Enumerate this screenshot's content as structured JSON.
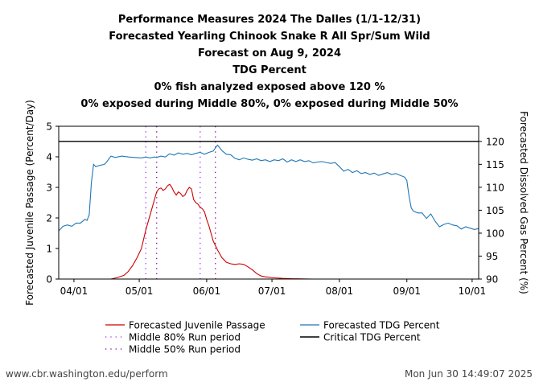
{
  "titles": [
    "Performance Measures 2024 The Dalles (1/1-12/31)",
    "Forecasted Yearling Chinook Snake R All Spr/Sum Wild",
    "Forecast on Aug 9, 2024",
    "TDG Percent",
    "0% fish analyzed exposed above 120 %",
    "0% exposed during Middle 80%, 0% exposed during Middle 50%"
  ],
  "footer": {
    "left": "www.cbr.washington.edu/perform",
    "right": "Mon Jun 30 14:49:07 2025"
  },
  "colors": {
    "passage": "#cc0000",
    "tdg": "#1f77b4",
    "mid80": "#9b30ff",
    "mid50": "#8b008b",
    "critical": "#000000"
  },
  "chart_data": {
    "type": "line",
    "ylabel": "Forecasted Juvenile Passage (Percent/Day)",
    "y2label": "Forecasted Dissolved Gas Percent (%)",
    "ylim": [
      0,
      5
    ],
    "y2lim": [
      90,
      123.3
    ],
    "xlim": [
      -7,
      186
    ],
    "xticks": [
      {
        "day": 0,
        "label": "04/01"
      },
      {
        "day": 30,
        "label": "05/01"
      },
      {
        "day": 61,
        "label": "06/01"
      },
      {
        "day": 91,
        "label": "07/01"
      },
      {
        "day": 122,
        "label": "08/01"
      },
      {
        "day": 153,
        "label": "09/01"
      },
      {
        "day": 183,
        "label": "10/01"
      }
    ],
    "yticks": [
      0,
      1,
      2,
      3,
      4,
      5
    ],
    "y2ticks": [
      90,
      95,
      100,
      105,
      110,
      115,
      120
    ],
    "critical_tdg": 120,
    "middle80": [
      33,
      58
    ],
    "middle50": [
      38,
      65
    ],
    "legend": {
      "passage": "Forecasted Juvenile Passage",
      "mid80": "Middle 80% Run period",
      "mid50": "Middle 50% Run period",
      "tdg": "Forecasted TDG Percent",
      "critical": "Critical TDG Percent"
    },
    "series": [
      {
        "name": "Forecasted Juvenile Passage",
        "x": [
          -7,
          17,
          20,
          23,
          25,
          27,
          29,
          31,
          33,
          35,
          37,
          38,
          39,
          40,
          41,
          42,
          43,
          44,
          45,
          46,
          47,
          48,
          49,
          50,
          51,
          52,
          53,
          54,
          55,
          56,
          57,
          58,
          59,
          60,
          61,
          62,
          63,
          64,
          66,
          68,
          70,
          72,
          74,
          76,
          78,
          80,
          82,
          84,
          86,
          88,
          92,
          96,
          100,
          110,
          186
        ],
        "values": [
          0,
          0,
          0.05,
          0.12,
          0.25,
          0.45,
          0.7,
          1.0,
          1.6,
          2.1,
          2.6,
          2.85,
          2.95,
          2.98,
          2.9,
          2.95,
          3.05,
          3.1,
          3.0,
          2.85,
          2.75,
          2.85,
          2.8,
          2.7,
          2.75,
          2.9,
          3.0,
          2.95,
          2.6,
          2.5,
          2.45,
          2.35,
          2.3,
          2.2,
          1.95,
          1.75,
          1.5,
          1.25,
          0.95,
          0.7,
          0.55,
          0.5,
          0.48,
          0.5,
          0.48,
          0.4,
          0.3,
          0.18,
          0.1,
          0.07,
          0.04,
          0.02,
          0.01,
          0,
          0
        ]
      },
      {
        "name": "Forecasted TDG Percent",
        "x": [
          -7,
          -5,
          -3,
          -1,
          1,
          3,
          5,
          6,
          7,
          8,
          9,
          10,
          12,
          14,
          15,
          17,
          19,
          22,
          25,
          28,
          31,
          33,
          35,
          37,
          38,
          40,
          42,
          44,
          46,
          48,
          50,
          52,
          54,
          56,
          58,
          60,
          62,
          64,
          66,
          68,
          70,
          72,
          74,
          76,
          78,
          80,
          82,
          84,
          86,
          88,
          90,
          92,
          94,
          96,
          98,
          100,
          102,
          104,
          106,
          108,
          110,
          112,
          114,
          116,
          118,
          120,
          122,
          124,
          126,
          128,
          130,
          132,
          134,
          136,
          138,
          140,
          142,
          144,
          146,
          148,
          150,
          152,
          153,
          154,
          155,
          156,
          157,
          158,
          160,
          162,
          164,
          166,
          168,
          170,
          172,
          174,
          176,
          178,
          180,
          182,
          184,
          186
        ],
        "values": [
          100.5,
          101.5,
          101.8,
          101.5,
          102.2,
          102.2,
          103,
          102.8,
          104,
          111,
          115,
          114.5,
          114.8,
          115,
          115.5,
          116.8,
          116.5,
          116.8,
          116.6,
          116.5,
          116.4,
          116.6,
          116.4,
          116.6,
          116.5,
          116.8,
          116.6,
          117.3,
          117,
          117.5,
          117.2,
          117.4,
          117.1,
          117.4,
          117.6,
          117.2,
          117.6,
          117.9,
          119.2,
          118,
          117.2,
          117.1,
          116.3,
          116,
          116.4,
          116.1,
          115.9,
          116.2,
          115.8,
          116,
          115.6,
          116,
          115.8,
          116.2,
          115.5,
          116,
          115.6,
          116,
          115.6,
          115.8,
          115.3,
          115.5,
          115.6,
          115.4,
          115.2,
          115.4,
          114.5,
          113.5,
          113.9,
          113.2,
          113.6,
          113,
          113.2,
          112.8,
          113.1,
          112.6,
          112.9,
          113.2,
          112.8,
          113,
          112.6,
          112.2,
          111.5,
          108,
          105.5,
          104.8,
          104.6,
          104.4,
          104.4,
          103.2,
          104.2,
          102.6,
          101.4,
          101.9,
          102.2,
          101.8,
          101.6,
          100.9,
          101.4,
          101.1,
          100.8,
          101.0
        ]
      }
    ]
  }
}
